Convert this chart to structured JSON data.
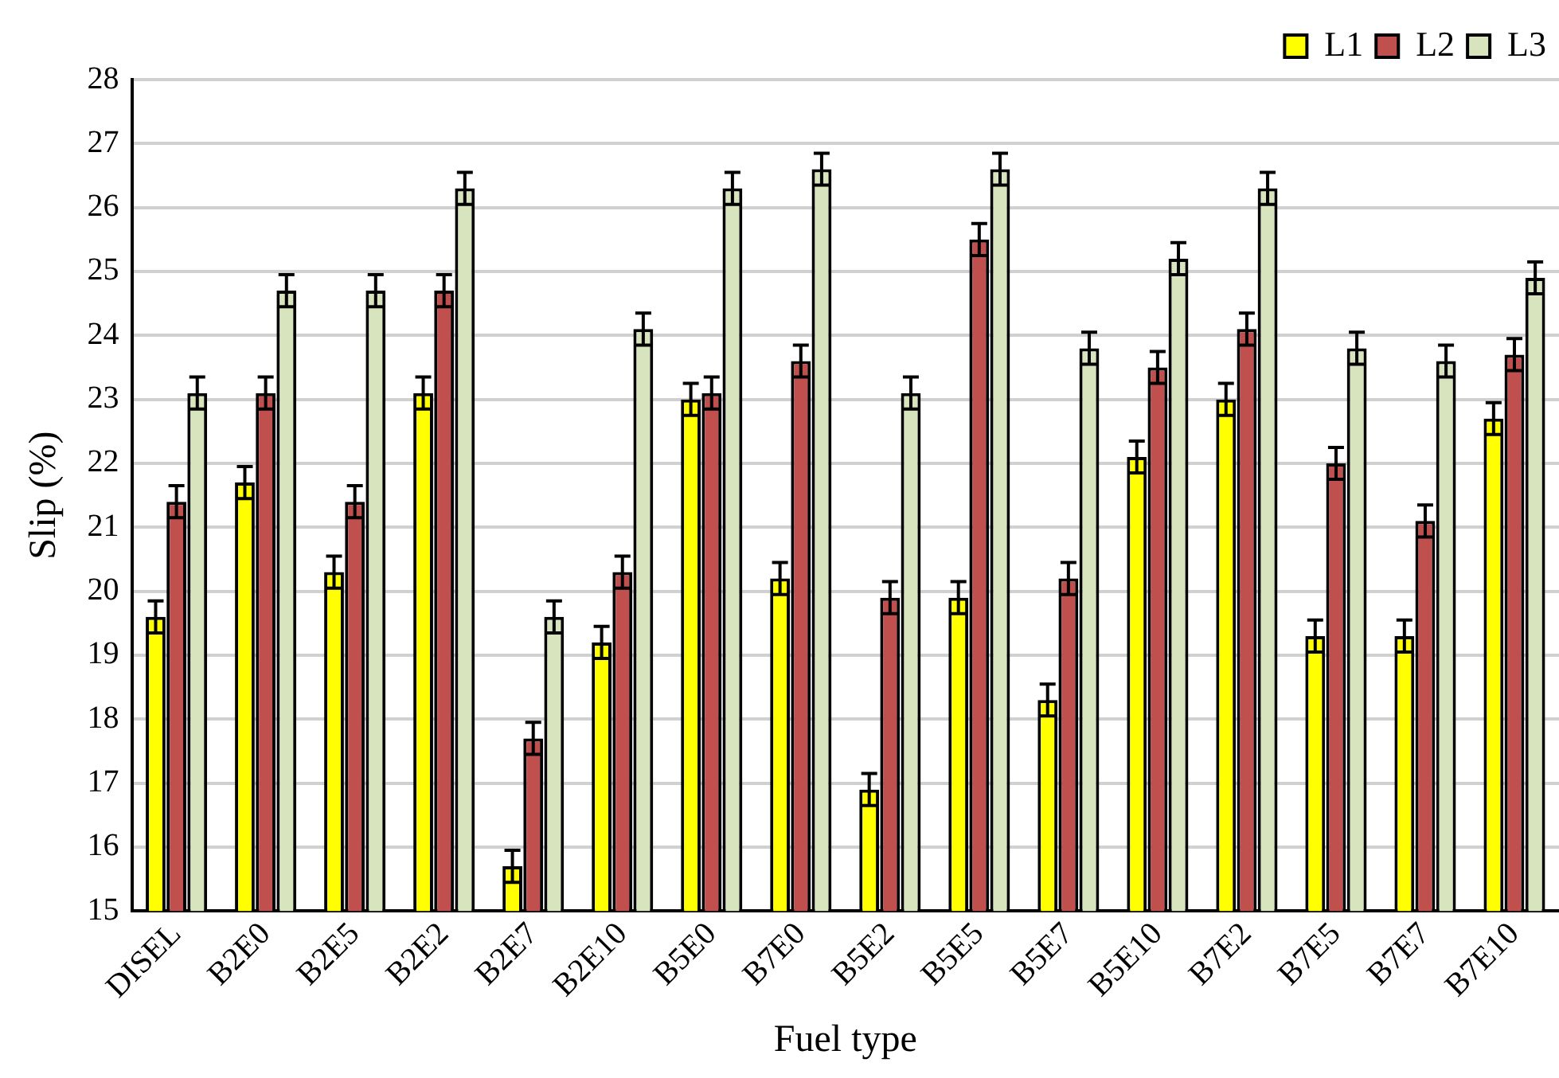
{
  "chart_data": {
    "type": "bar",
    "xlabel": "Fuel type",
    "ylabel": "Slip (%)",
    "categories": [
      "DISEL",
      "B2E0",
      "B2E5",
      "B2E2",
      "B2E7",
      "B2E10",
      "B5E0",
      "B7E0",
      "B5E2",
      "B5E5",
      "B5E7",
      "B5E10",
      "B7E2",
      "B7E5",
      "B7E7",
      "B7E10"
    ],
    "series": [
      {
        "name": "L1",
        "color": "#ffff00",
        "values": [
          19.6,
          21.7,
          20.3,
          23.1,
          15.7,
          19.2,
          23.0,
          20.2,
          16.9,
          19.9,
          18.3,
          22.1,
          23.0,
          19.3,
          19.3,
          22.7
        ],
        "errors": [
          0.25,
          0.25,
          0.25,
          0.25,
          0.25,
          0.25,
          0.25,
          0.25,
          0.25,
          0.25,
          0.25,
          0.25,
          0.25,
          0.25,
          0.25,
          0.25
        ]
      },
      {
        "name": "L2",
        "color": "#c0504d",
        "values": [
          21.4,
          23.1,
          21.4,
          24.7,
          17.7,
          20.3,
          23.1,
          23.6,
          19.9,
          25.5,
          20.2,
          23.5,
          24.1,
          22.0,
          21.1,
          23.7
        ],
        "errors": [
          0.25,
          0.25,
          0.25,
          0.25,
          0.25,
          0.25,
          0.25,
          0.25,
          0.25,
          0.25,
          0.25,
          0.25,
          0.25,
          0.25,
          0.25,
          0.25
        ]
      },
      {
        "name": "L3",
        "color": "#d7e4bd",
        "values": [
          23.1,
          24.7,
          24.7,
          26.3,
          19.6,
          24.1,
          26.3,
          26.6,
          23.1,
          26.6,
          23.8,
          25.2,
          26.3,
          23.8,
          23.6,
          24.9
        ],
        "errors": [
          0.25,
          0.25,
          0.25,
          0.25,
          0.25,
          0.25,
          0.25,
          0.25,
          0.25,
          0.25,
          0.25,
          0.25,
          0.25,
          0.25,
          0.25,
          0.25
        ]
      }
    ],
    "ylim": [
      15,
      28
    ],
    "yticks": [
      15,
      16,
      17,
      18,
      19,
      20,
      21,
      22,
      23,
      24,
      25,
      26,
      27,
      28
    ],
    "grid": "y",
    "legend": "top right"
  }
}
